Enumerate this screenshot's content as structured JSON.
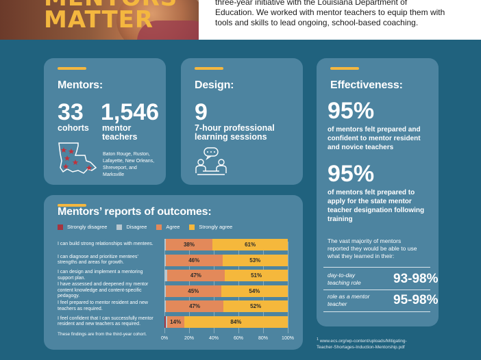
{
  "hero": {
    "title_line1": "MENTORS",
    "title_line2": "MATTER"
  },
  "intro": {
    "text": "three-year initiative with the Louisiana Department of Education. We worked with mentor teachers to equip them with tools and skills to lead ongoing, school-based coaching."
  },
  "mentors": {
    "title": "Mentors:",
    "cohorts_value": "33",
    "cohorts_label": "cohorts",
    "teachers_value": "1,546",
    "teachers_label_1": "mentor",
    "teachers_label_2": "teachers",
    "locations": [
      "Baton Rouge, Ruston,",
      "Lafayette, New Orleans,",
      "Shreveport, and",
      "Marksville"
    ],
    "map_icon": "louisiana-map-icon"
  },
  "design": {
    "title": "Design:",
    "value": "9",
    "label_1": "7-hour professional",
    "label_2": "learning sessions",
    "icon": "conversation-icon"
  },
  "effectiveness": {
    "title": "Effectiveness:",
    "stat1_value": "95%",
    "stat1_lines": [
      "of mentors felt prepared and",
      "confident to mentor resident",
      "and novice teachers"
    ],
    "stat2_value": "95%",
    "stat2_lines": [
      "of mentors felt prepared to",
      "apply for the state mentor",
      "teacher designation following",
      "training"
    ],
    "majority_lines": [
      "The vast majority of mentors",
      "reported they would be able to use",
      "what they learned in their:"
    ],
    "rows": [
      {
        "label_1": "day-to-day",
        "label_2": "teaching role",
        "value": "93-98%"
      },
      {
        "label_1": "role as a mentor",
        "label_2": "teacher",
        "value": "95-98%"
      }
    ]
  },
  "outcomes": {
    "title": "Mentors’ reports of outcomes:",
    "footnote": "These findings are from the third-year cohort."
  },
  "chart_data": {
    "type": "bar",
    "orientation": "horizontal-stacked",
    "title": "Mentors’ reports of outcomes:",
    "legend": [
      "Strongly disagree",
      "Disagree",
      "Agree",
      "Strongly agree"
    ],
    "colors": {
      "Strongly disagree": "#a5343f",
      "Disagree": "#b8c7cf",
      "Agree": "#e3895a",
      "Strongly agree": "#f5b83c"
    },
    "categories": [
      [
        "I can build strong relationships with mentees."
      ],
      [
        "I can diagnose and prioritize mentees’",
        "strengths and areas for growth."
      ],
      [
        "I can design and implement a mentoring",
        "support plan."
      ],
      [
        "I have assessed and deepened my mentor",
        "content knowledge and content-specific",
        "pedagogy."
      ],
      [
        "I feel prepared to mentor resident and new",
        "teachers as required."
      ],
      [
        "I feel confident that I can successfully mentor",
        "resident and new teachers as required."
      ]
    ],
    "series": [
      {
        "name": "Strongly disagree",
        "values": [
          0,
          0,
          0,
          0,
          0,
          1
        ]
      },
      {
        "name": "Disagree",
        "values": [
          1,
          1,
          2,
          1,
          1,
          1
        ]
      },
      {
        "name": "Agree",
        "values": [
          38,
          46,
          47,
          45,
          47,
          14
        ]
      },
      {
        "name": "Strongly agree",
        "values": [
          61,
          53,
          51,
          54,
          52,
          84
        ]
      }
    ],
    "labels": {
      "Agree": [
        "38%",
        "46%",
        "47%",
        "45%",
        "47%",
        "14%"
      ],
      "Strongly agree": [
        "61%",
        "53%",
        "51%",
        "54%",
        "52%",
        "84%"
      ]
    },
    "xticks": [
      "0%",
      "20%",
      "40%",
      "60%",
      "80%",
      "100%"
    ],
    "xlim": [
      0,
      100
    ],
    "grid": true,
    "legend_position": "top"
  },
  "reference": {
    "marker": "1",
    "lines": [
      "www.ecs.org/wp-content/uploads/Mitigating-",
      "Teacher-Shortages-Induction-Mentorship.pdf"
    ]
  }
}
